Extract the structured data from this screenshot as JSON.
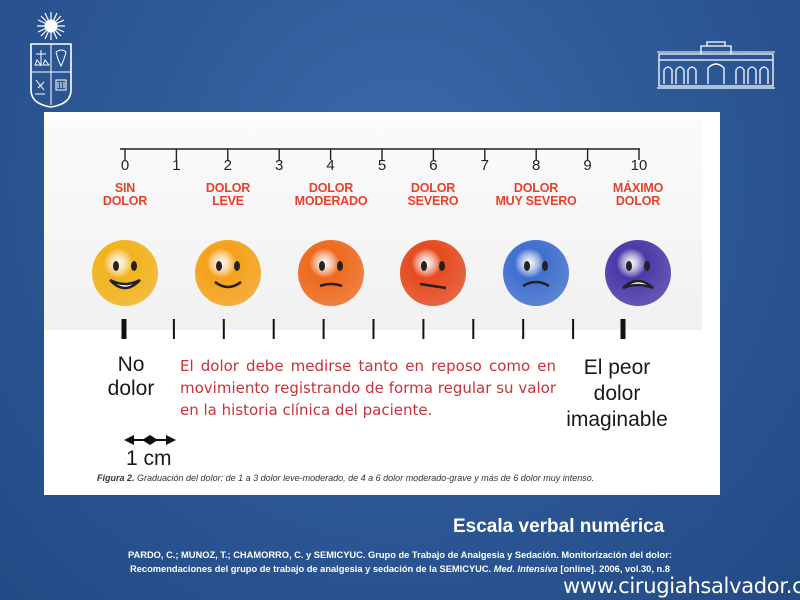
{
  "ruler": {
    "numbers": [
      "0",
      "1",
      "2",
      "3",
      "4",
      "5",
      "6",
      "7",
      "8",
      "9",
      "10"
    ]
  },
  "categories": [
    {
      "label": "SIN\nDOLOR",
      "color": "#f2b21c"
    },
    {
      "label": "DOLOR\nLEVE",
      "color": "#f4a11a"
    },
    {
      "label": "DOLOR\nMODERADO",
      "color": "#ee6a1e"
    },
    {
      "label": "DOLOR\nSEVERO",
      "color": "#e64a1f"
    },
    {
      "label": "DOLOR\nMUY SEVERO",
      "color": "#3f6fce"
    },
    {
      "label": "MÁXIMO\nDOLOR",
      "color": "#4a3aa8"
    }
  ],
  "left_anchor": {
    "line1": "No",
    "line2": "dolor"
  },
  "right_anchor": {
    "line1": "El peor",
    "line2": "dolor",
    "line3": "imaginable"
  },
  "note": "El dolor debe medirse tanto en reposo como en movimiento registrando de forma regular su valor en la historia clínica del paciente.",
  "scale_label": "1 cm",
  "caption": {
    "prefix": "Figura 2.",
    "text": " Graduación del dolor: de 1 a 3 dolor leve-moderado, de 4 a 6 dolor moderado-grave y más de 6 dolor muy intenso."
  },
  "slide_title": "Escala verbal numérica",
  "reference": {
    "line1": "PARDO, C.; MUNOZ, T.; CHAMORRO, C. y SEMICYUC. Grupo de Trabajo de Analgesia y Sedación. Monitorización del dolor:",
    "line2_a": "Recomendaciones del grupo de trabajo de analgesia y sedación de la SEMICYUC. ",
    "line2_journal": "Med. Intensiva",
    "line2_b": " [online]. 2006, vol.30, n.8"
  },
  "website": "www.cirugiahsalvador.cl",
  "colors": {
    "background": "#2e5a98",
    "category_text": "#e8412a",
    "note_text": "#c8323a"
  }
}
